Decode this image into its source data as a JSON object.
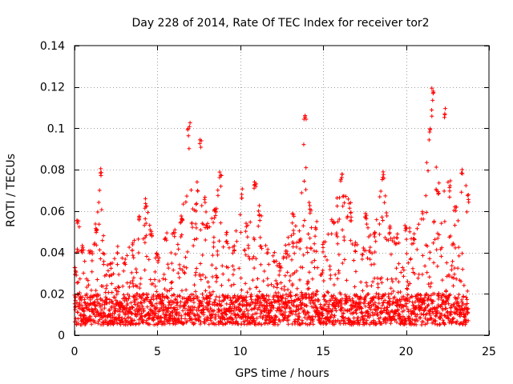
{
  "chart_data": {
    "type": "scatter",
    "title": "Day 228 of 2014, Rate Of TEC Index for receiver tor2",
    "xlabel": "GPS time / hours",
    "ylabel": "ROTI / TECUs",
    "xlim": [
      0,
      25
    ],
    "ylim": [
      0,
      0.14
    ],
    "xticks": [
      0,
      5,
      10,
      15,
      20,
      25
    ],
    "yticks": [
      0,
      0.02,
      0.04,
      0.06,
      0.08,
      0.1,
      0.12,
      0.14
    ],
    "xtick_labels": [
      "0",
      "5",
      "10",
      "15",
      "20",
      "25"
    ],
    "ytick_labels": [
      "0",
      "0.02",
      "0.04",
      "0.06",
      "0.08",
      "0.1",
      "0.12",
      "0.14"
    ],
    "grid": true,
    "marker": "plus",
    "color": "#ff0000",
    "data_range_hours": [
      0,
      23.75
    ],
    "baseline_range": [
      0.005,
      0.02
    ],
    "envelope": [
      [
        0.0,
        0.035
      ],
      [
        0.2,
        0.058
      ],
      [
        0.5,
        0.045
      ],
      [
        1.0,
        0.042
      ],
      [
        1.3,
        0.055
      ],
      [
        1.6,
        0.083
      ],
      [
        1.8,
        0.04
      ],
      [
        2.2,
        0.035
      ],
      [
        2.6,
        0.045
      ],
      [
        3.0,
        0.04
      ],
      [
        3.5,
        0.045
      ],
      [
        3.9,
        0.058
      ],
      [
        4.3,
        0.067
      ],
      [
        4.6,
        0.052
      ],
      [
        5.0,
        0.04
      ],
      [
        5.5,
        0.05
      ],
      [
        6.0,
        0.052
      ],
      [
        6.5,
        0.06
      ],
      [
        6.9,
        0.103
      ],
      [
        7.3,
        0.065
      ],
      [
        7.6,
        0.096
      ],
      [
        8.0,
        0.055
      ],
      [
        8.5,
        0.062
      ],
      [
        8.8,
        0.082
      ],
      [
        9.2,
        0.05
      ],
      [
        9.6,
        0.045
      ],
      [
        10.1,
        0.072
      ],
      [
        10.4,
        0.055
      ],
      [
        10.9,
        0.077
      ],
      [
        11.2,
        0.06
      ],
      [
        11.6,
        0.045
      ],
      [
        12.0,
        0.04
      ],
      [
        12.4,
        0.035
      ],
      [
        12.8,
        0.045
      ],
      [
        13.2,
        0.06
      ],
      [
        13.6,
        0.05
      ],
      [
        13.9,
        0.109
      ],
      [
        14.2,
        0.065
      ],
      [
        14.6,
        0.055
      ],
      [
        15.0,
        0.045
      ],
      [
        15.6,
        0.06
      ],
      [
        16.1,
        0.079
      ],
      [
        16.6,
        0.065
      ],
      [
        17.0,
        0.045
      ],
      [
        17.6,
        0.06
      ],
      [
        18.1,
        0.05
      ],
      [
        18.6,
        0.079
      ],
      [
        19.0,
        0.055
      ],
      [
        19.5,
        0.05
      ],
      [
        20.0,
        0.055
      ],
      [
        20.5,
        0.05
      ],
      [
        21.0,
        0.06
      ],
      [
        21.4,
        0.1
      ],
      [
        21.6,
        0.122
      ],
      [
        21.9,
        0.07
      ],
      [
        22.3,
        0.111
      ],
      [
        22.6,
        0.075
      ],
      [
        23.0,
        0.065
      ],
      [
        23.4,
        0.081
      ],
      [
        23.75,
        0.07
      ]
    ]
  }
}
